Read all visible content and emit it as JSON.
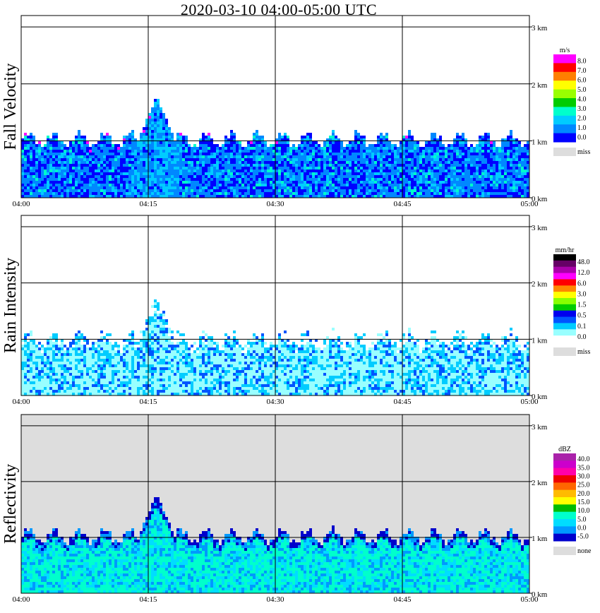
{
  "title": "2020-03-10   04:00-05:00 UTC",
  "x_ticks": [
    "04:00",
    "04:15",
    "04:30",
    "04:45",
    "05:00"
  ],
  "y_ticks": [
    "0 km",
    "1 km",
    "2 km",
    "3 km"
  ],
  "chart_data": [
    {
      "type": "heatmap",
      "ylabel": "Fall Velocity",
      "xlim": [
        "04:00",
        "05:00"
      ],
      "ylim": [
        0,
        3.2
      ],
      "colorbar": {
        "unit": "m/s",
        "labels": [
          "8.0",
          "7.0",
          "6.0",
          "5.0",
          "4.0",
          "3.0",
          "2.0",
          "1.0",
          "0.0"
        ],
        "colors": [
          "#ff00ff",
          "#ff0000",
          "#ff7f00",
          "#ffff00",
          "#99ff00",
          "#00cc00",
          "#00ffcc",
          "#00ccff",
          "#0088ff",
          "#0000ff"
        ],
        "missing_label": "miss",
        "missing_color": "#dddddd"
      },
      "echo_top_km": {
        "min": 0.9,
        "typical": 1.05,
        "max": 1.8,
        "max_time": "04:16"
      }
    },
    {
      "type": "heatmap",
      "ylabel": "Rain Intensity",
      "xlim": [
        "04:00",
        "05:00"
      ],
      "ylim": [
        0,
        3.2
      ],
      "colorbar": {
        "unit": "mm/hr",
        "labels": [
          "48.0",
          "12.0",
          "6.0",
          "3.0",
          "1.5",
          "0.5",
          "0.1",
          "0.0"
        ],
        "colors": [
          "#000000",
          "#660066",
          "#aa00aa",
          "#ff00ff",
          "#ff0000",
          "#ff8800",
          "#ffff00",
          "#88ff00",
          "#00cc00",
          "#0000ee",
          "#0055ff",
          "#00ccff",
          "#99ffff",
          "#ffffff"
        ],
        "missing_label": "miss",
        "missing_color": "#dddddd"
      },
      "echo_top_km": {
        "min": 0.9,
        "typical": 1.05,
        "max": 1.8,
        "max_time": "04:16"
      }
    },
    {
      "type": "heatmap",
      "ylabel": "Reflectivity",
      "xlim": [
        "04:00",
        "05:00"
      ],
      "ylim": [
        0,
        3.2
      ],
      "colorbar": {
        "unit": "dBZ",
        "labels": [
          "40.0",
          "35.0",
          "30.0",
          "25.0",
          "20.0",
          "15.0",
          "10.0",
          "5.0",
          "0.0",
          "-5.0"
        ],
        "colors": [
          "#aa22aa",
          "#cc00cc",
          "#ff00aa",
          "#ee0000",
          "#ff6600",
          "#ffbb00",
          "#ffff00",
          "#00bb00",
          "#00ffcc",
          "#00ddff",
          "#0099ff",
          "#0000cc"
        ],
        "missing_label": "none",
        "missing_color": "#dddddd"
      },
      "echo_top_km": {
        "min": 0.9,
        "typical": 1.05,
        "max": 1.8,
        "max_time": "04:16"
      }
    }
  ]
}
